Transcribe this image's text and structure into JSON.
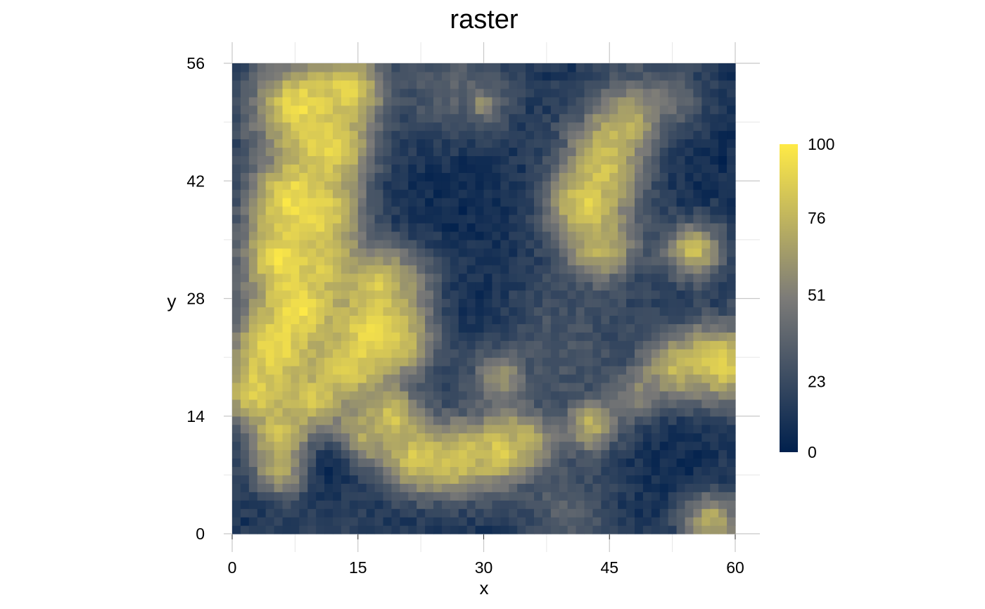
{
  "chart_data": {
    "type": "heatmap",
    "title": "raster",
    "xlabel": "x",
    "ylabel": "y",
    "xlim": [
      0,
      60
    ],
    "ylim": [
      0,
      56
    ],
    "x_ticks": [
      "0",
      "15",
      "30",
      "45",
      "60"
    ],
    "y_ticks": [
      "0",
      "14",
      "28",
      "42",
      "56"
    ],
    "grid": true,
    "legend": {
      "position": "right",
      "min": 0,
      "max": 100,
      "ticks": [
        "0",
        "23",
        "51",
        "76",
        "100"
      ],
      "palette": "cividis",
      "color_low": "#00204D",
      "color_mid": "#7C7B78",
      "color_high": "#FFEA46"
    },
    "grid_cols": 60,
    "grid_rows": 56,
    "hotspots": [
      {
        "x": 8,
        "y": 51,
        "value": 92,
        "radius": 4
      },
      {
        "x": 12,
        "y": 46,
        "value": 95,
        "radius": 3.5
      },
      {
        "x": 14,
        "y": 53,
        "value": 90,
        "radius": 3
      },
      {
        "x": 7,
        "y": 40,
        "value": 95,
        "radius": 3.5
      },
      {
        "x": 11,
        "y": 38,
        "value": 92,
        "radius": 3.5
      },
      {
        "x": 6,
        "y": 33,
        "value": 95,
        "radius": 3.5
      },
      {
        "x": 8,
        "y": 27,
        "value": 96,
        "radius": 3.5
      },
      {
        "x": 5,
        "y": 22,
        "value": 95,
        "radius": 3.5
      },
      {
        "x": 3,
        "y": 17,
        "value": 90,
        "radius": 3
      },
      {
        "x": 11,
        "y": 32,
        "value": 85,
        "radius": 2.5
      },
      {
        "x": 18,
        "y": 30,
        "value": 92,
        "radius": 3
      },
      {
        "x": 22,
        "y": 29,
        "value": 80,
        "radius": 3.5
      },
      {
        "x": 17,
        "y": 24,
        "value": 95,
        "radius": 3.5
      },
      {
        "x": 20,
        "y": 24,
        "value": 88,
        "radius": 3
      },
      {
        "x": 14,
        "y": 20,
        "value": 90,
        "radius": 3
      },
      {
        "x": 10,
        "y": 16,
        "value": 85,
        "radius": 2.5
      },
      {
        "x": 6,
        "y": 12,
        "value": 85,
        "radius": 2.5
      },
      {
        "x": 6,
        "y": 8,
        "value": 75,
        "radius": 2.5
      },
      {
        "x": 15,
        "y": 11,
        "value": 80,
        "radius": 2.5
      },
      {
        "x": 19,
        "y": 14,
        "value": 82,
        "radius": 2.5
      },
      {
        "x": 22,
        "y": 9,
        "value": 85,
        "radius": 3
      },
      {
        "x": 27,
        "y": 9,
        "value": 85,
        "radius": 3
      },
      {
        "x": 32,
        "y": 10,
        "value": 85,
        "radius": 3
      },
      {
        "x": 35,
        "y": 11,
        "value": 75,
        "radius": 2.5
      },
      {
        "x": 48,
        "y": 48,
        "value": 95,
        "radius": 3.5
      },
      {
        "x": 45,
        "y": 44,
        "value": 90,
        "radius": 3.5
      },
      {
        "x": 42,
        "y": 39,
        "value": 92,
        "radius": 3.5
      },
      {
        "x": 44,
        "y": 34,
        "value": 75,
        "radius": 3
      },
      {
        "x": 52,
        "y": 50,
        "value": 68,
        "radius": 3
      },
      {
        "x": 55,
        "y": 34,
        "value": 85,
        "radius": 2.5
      },
      {
        "x": 58,
        "y": 20,
        "value": 95,
        "radius": 3.5
      },
      {
        "x": 53,
        "y": 19,
        "value": 88,
        "radius": 3
      },
      {
        "x": 49,
        "y": 16,
        "value": 72,
        "radius": 2.5
      },
      {
        "x": 43,
        "y": 13,
        "value": 80,
        "radius": 2.5
      },
      {
        "x": 57,
        "y": 2,
        "value": 85,
        "radius": 2.5
      },
      {
        "x": 30,
        "y": 51,
        "value": 70,
        "radius": 1.5
      },
      {
        "x": 32,
        "y": 19,
        "value": 62,
        "radius": 2.5
      },
      {
        "x": 8,
        "y": 48,
        "value": 50,
        "radius": 3.5
      },
      {
        "x": 27,
        "y": 52,
        "value": 40,
        "radius": 5
      },
      {
        "x": 38,
        "y": 22,
        "value": 30,
        "radius": 8
      },
      {
        "x": 45,
        "y": 25,
        "value": 20,
        "radius": 6
      },
      {
        "x": 40,
        "y": 3,
        "value": 35,
        "radius": 4
      },
      {
        "x": 12,
        "y": 2,
        "value": 18,
        "radius": 6
      },
      {
        "x": 48,
        "y": 53,
        "value": 30,
        "radius": 4
      }
    ],
    "cold_zones": [
      {
        "x": 12,
        "y": 8,
        "value": 2,
        "radius": 2.5
      },
      {
        "x": 27,
        "y": 40,
        "value": 5,
        "radius": 6
      },
      {
        "x": 28,
        "y": 28,
        "value": 5,
        "radius": 4
      },
      {
        "x": 55,
        "y": 45,
        "value": 5,
        "radius": 5
      },
      {
        "x": 53,
        "y": 10,
        "value": 6,
        "radius": 5
      }
    ]
  }
}
